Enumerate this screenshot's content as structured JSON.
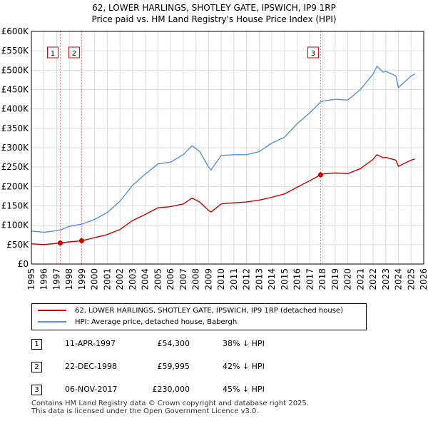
{
  "title_line1": "62, LOWER HARLINGS, SHOTLEY GATE, IPSWICH, IP9 1RP",
  "title_line2": "Price paid vs. HM Land Registry's House Price Index (HPI)",
  "legend": {
    "property": "62, LOWER HARLINGS, SHOTLEY GATE, IPSWICH, IP9 1RP (detached house)",
    "hpi": "HPI: Average price, detached house, Babergh"
  },
  "sales": [
    {
      "num": "1",
      "date": "11-APR-1997",
      "price": "£54,300",
      "hpi": "38% ↓ HPI"
    },
    {
      "num": "2",
      "date": "22-DEC-1998",
      "price": "£59,995",
      "hpi": "42% ↓ HPI"
    },
    {
      "num": "3",
      "date": "06-NOV-2017",
      "price": "£230,000",
      "hpi": "45% ↓ HPI"
    }
  ],
  "footer": {
    "line1": "Contains HM Land Registry data © Crown copyright and database right 2025.",
    "line2": "This data is licensed under the Open Government Licence v3.0."
  },
  "colors": {
    "property": "#cc0000",
    "hpi": "#5b8ed6",
    "marker_line": "#ee8888",
    "grid": "#dddddd"
  },
  "chart_data": {
    "type": "line",
    "xlim": [
      1995,
      2026
    ],
    "ylim": [
      0,
      600000
    ],
    "xticks": [
      1995,
      1996,
      1997,
      1998,
      1999,
      2000,
      2001,
      2002,
      2003,
      2004,
      2005,
      2006,
      2007,
      2008,
      2009,
      2010,
      2011,
      2012,
      2013,
      2014,
      2015,
      2016,
      2017,
      2018,
      2019,
      2020,
      2021,
      2022,
      2023,
      2024,
      2025,
      2026
    ],
    "yticks": [
      0,
      50000,
      100000,
      150000,
      200000,
      250000,
      300000,
      350000,
      400000,
      450000,
      500000,
      550000,
      600000
    ],
    "ytick_labels": [
      "£0",
      "£50K",
      "£100K",
      "£150K",
      "£200K",
      "£250K",
      "£300K",
      "£350K",
      "£400K",
      "£450K",
      "£500K",
      "£550K",
      "£600K"
    ],
    "series": [
      {
        "name": "HPI: Average price, detached house, Babergh",
        "x": [
          1995,
          1996,
          1997,
          1997.3,
          1998,
          1999,
          2000,
          2001,
          2002,
          2003,
          2004,
          2005,
          2006,
          2007,
          2007.7,
          2008.3,
          2009.0,
          2009.2,
          2010,
          2011,
          2012,
          2013,
          2014,
          2015,
          2016,
          2017,
          2017.85,
          2018,
          2019,
          2020,
          2021,
          2022,
          2022.3,
          2022.8,
          2023,
          2023.8,
          2024,
          2024.5,
          2025,
          2025.3
        ],
        "values": [
          85000,
          82000,
          86000,
          88000,
          97000,
          103000,
          115000,
          133000,
          162000,
          203000,
          232000,
          258000,
          263000,
          282000,
          305000,
          290000,
          250000,
          243000,
          280000,
          282000,
          282000,
          290000,
          312000,
          327000,
          362000,
          390000,
          418000,
          420000,
          425000,
          423000,
          450000,
          490000,
          510000,
          495000,
          497000,
          485000,
          455000,
          470000,
          485000,
          490000
        ]
      },
      {
        "name": "62, LOWER HARLINGS, SHOTLEY GATE, IPSWICH, IP9 1RP (detached house)",
        "x": [
          1995,
          1996,
          1997.28,
          1998,
          1998.97,
          2000,
          2001,
          2002,
          2003,
          2004,
          2005,
          2006,
          2007,
          2007.7,
          2008.3,
          2009.0,
          2009.2,
          2010,
          2011,
          2012,
          2013,
          2014,
          2015,
          2016,
          2017,
          2017.85,
          2018,
          2019,
          2020,
          2021,
          2022,
          2022.3,
          2022.8,
          2023,
          2023.8,
          2024,
          2024.5,
          2025,
          2025.3
        ],
        "values": [
          52000,
          50000,
          54300,
          57000,
          59995,
          68000,
          76000,
          89000,
          112000,
          128000,
          145000,
          148000,
          155000,
          170000,
          160000,
          138000,
          134000,
          155000,
          158000,
          160000,
          165000,
          172000,
          181000,
          198000,
          215000,
          230000,
          232000,
          235000,
          233000,
          246000,
          270000,
          282000,
          274000,
          275000,
          268000,
          252000,
          260000,
          268000,
          271000
        ]
      }
    ],
    "sales_markers": [
      {
        "label": "1",
        "x": 1997.28,
        "y": 54300
      },
      {
        "label": "2",
        "x": 1998.97,
        "y": 59995
      },
      {
        "label": "3",
        "x": 2017.85,
        "y": 230000
      }
    ]
  }
}
